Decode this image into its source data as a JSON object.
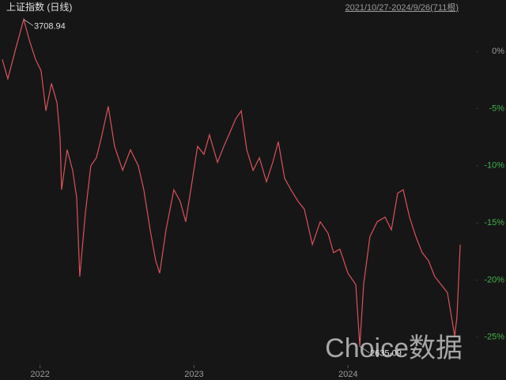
{
  "chart_data": {
    "type": "line",
    "title": "上证指数 (日线)",
    "subtitle": "2021/10/27-2024/9/26(711根)",
    "watermark": "Choice数据",
    "color": "#d9535a",
    "background": "#161616",
    "tick_color": "#9a9a9a",
    "negative_tick_color": "#45b04a",
    "x": [
      2021.755,
      2021.791,
      2021.843,
      2021.894,
      2021.93,
      2021.971,
      2022.007,
      2022.038,
      2022.074,
      2022.11,
      2022.13,
      2022.14,
      2022.176,
      2022.212,
      2022.238,
      2022.258,
      2022.294,
      2022.33,
      2022.366,
      2022.397,
      2022.443,
      2022.484,
      2022.536,
      2022.587,
      2022.638,
      2022.674,
      2022.715,
      2022.751,
      2022.777,
      2022.818,
      2022.869,
      2022.91,
      2022.946,
      2022.987,
      2023.023,
      2023.064,
      2023.1,
      2023.152,
      2023.193,
      2023.239,
      2023.27,
      2023.306,
      2023.342,
      2023.383,
      2023.424,
      2023.47,
      2023.511,
      2023.547,
      2023.588,
      2023.629,
      2023.675,
      2023.716,
      2023.768,
      2023.819,
      2023.87,
      2023.906,
      2023.947,
      2023.999,
      2024.05,
      2024.076,
      2024.101,
      2024.142,
      2024.189,
      2024.24,
      2024.281,
      2024.322,
      2024.358,
      2024.399,
      2024.44,
      2024.481,
      2024.522,
      2024.563,
      2024.604,
      2024.645,
      2024.692,
      2024.707,
      2024.728
    ],
    "values": [
      -0.7,
      -2.4,
      0.3,
      2.8,
      1.0,
      -0.7,
      -1.7,
      -5.2,
      -2.8,
      -4.5,
      -7.6,
      -12.1,
      -8.6,
      -10.4,
      -12.8,
      -19.7,
      -14.2,
      -10.0,
      -9.3,
      -7.6,
      -4.8,
      -8.3,
      -10.4,
      -8.6,
      -10.0,
      -12.1,
      -15.6,
      -18.3,
      -19.4,
      -15.6,
      -12.1,
      -13.1,
      -14.9,
      -11.4,
      -8.3,
      -9.0,
      -7.3,
      -9.7,
      -8.3,
      -6.9,
      -5.9,
      -5.2,
      -8.6,
      -10.4,
      -9.3,
      -11.4,
      -9.7,
      -7.9,
      -11.1,
      -12.1,
      -13.1,
      -13.8,
      -16.9,
      -14.9,
      -15.9,
      -17.6,
      -17.3,
      -19.4,
      -20.4,
      -25.8,
      -20.4,
      -16.2,
      -14.9,
      -14.5,
      -15.6,
      -12.4,
      -12.1,
      -14.5,
      -16.2,
      -17.6,
      -18.3,
      -19.7,
      -20.4,
      -21.1,
      -24.9,
      -23.2,
      -16.9
    ],
    "annotations": [
      {
        "text": "3708.94",
        "x": 2021.894,
        "y": 2.8
      },
      {
        "text": "2635.09",
        "x": 2024.076,
        "y": -25.8
      }
    ],
    "xlim": [
      2021.74,
      2024.82
    ],
    "xticks": [
      2022,
      2023,
      2024
    ],
    "ylim": [
      -27.5,
      4.5
    ],
    "yticks": [
      {
        "value": 0,
        "label": "0%"
      },
      {
        "value": -5,
        "label": "-5%"
      },
      {
        "value": -10,
        "label": "-10%"
      },
      {
        "value": -15,
        "label": "-15%"
      },
      {
        "value": -20,
        "label": "-20%"
      },
      {
        "value": -25,
        "label": "-25%"
      }
    ]
  }
}
